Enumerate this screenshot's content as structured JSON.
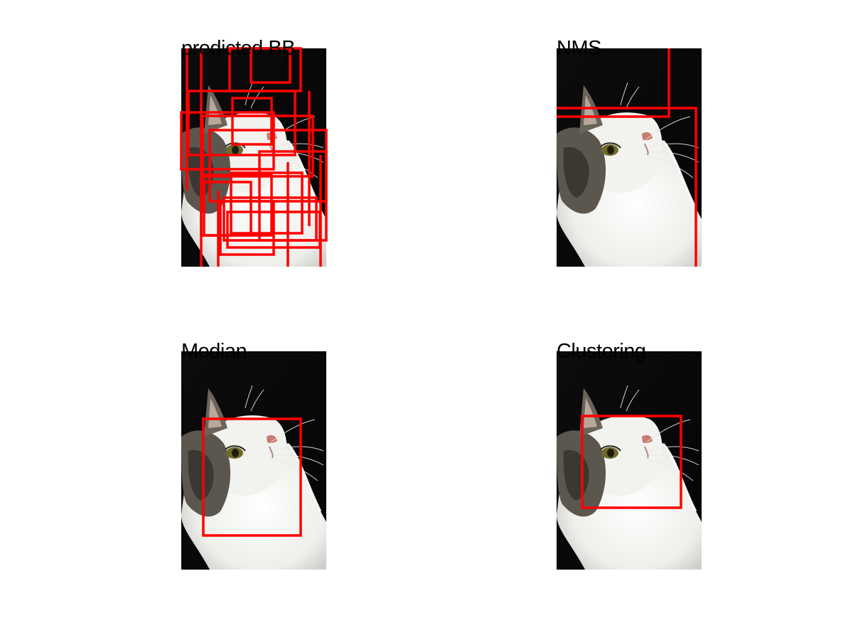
{
  "figure": {
    "box_color": "#ff0000",
    "panels": [
      {
        "title": "predicted BB"
      },
      {
        "title": "NMS"
      },
      {
        "title": "Median"
      },
      {
        "title": "Clustering"
      }
    ]
  }
}
